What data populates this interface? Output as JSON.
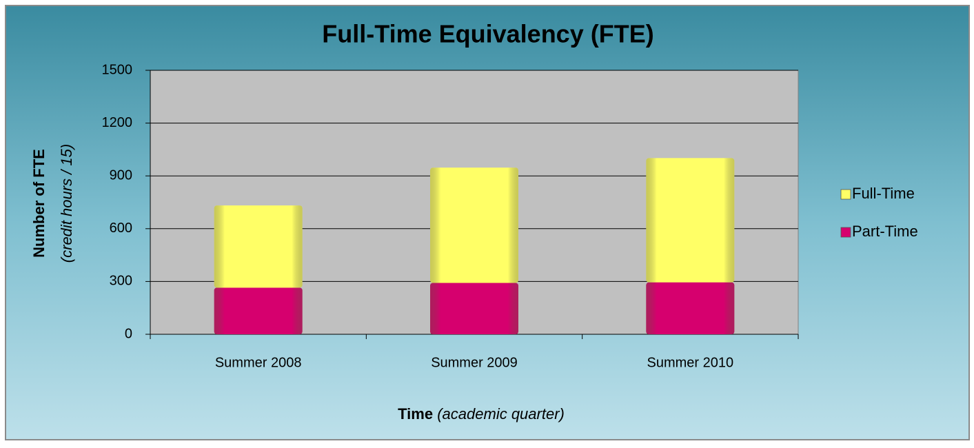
{
  "chart_data": {
    "type": "stacked-bar",
    "title": "Full-Time Equivalency (FTE)",
    "y_label": "Number of FTE",
    "y_label_note": "(credit hours / 15)",
    "x_label": "Time",
    "x_label_note": "(academic quarter)",
    "categories": [
      "Summer 2008",
      "Summer 2009",
      "Summer 2010"
    ],
    "series": [
      {
        "name": "Part-Time",
        "color": "#d6006e",
        "values": [
          265,
          292,
          295
        ]
      },
      {
        "name": "Full-Time",
        "color": "#ffff66",
        "values": [
          467,
          655,
          706
        ]
      }
    ],
    "ylim": [
      0,
      1500
    ],
    "yticks": [
      0,
      300,
      600,
      900,
      1200,
      1500
    ],
    "grid": true,
    "legend": "right"
  }
}
